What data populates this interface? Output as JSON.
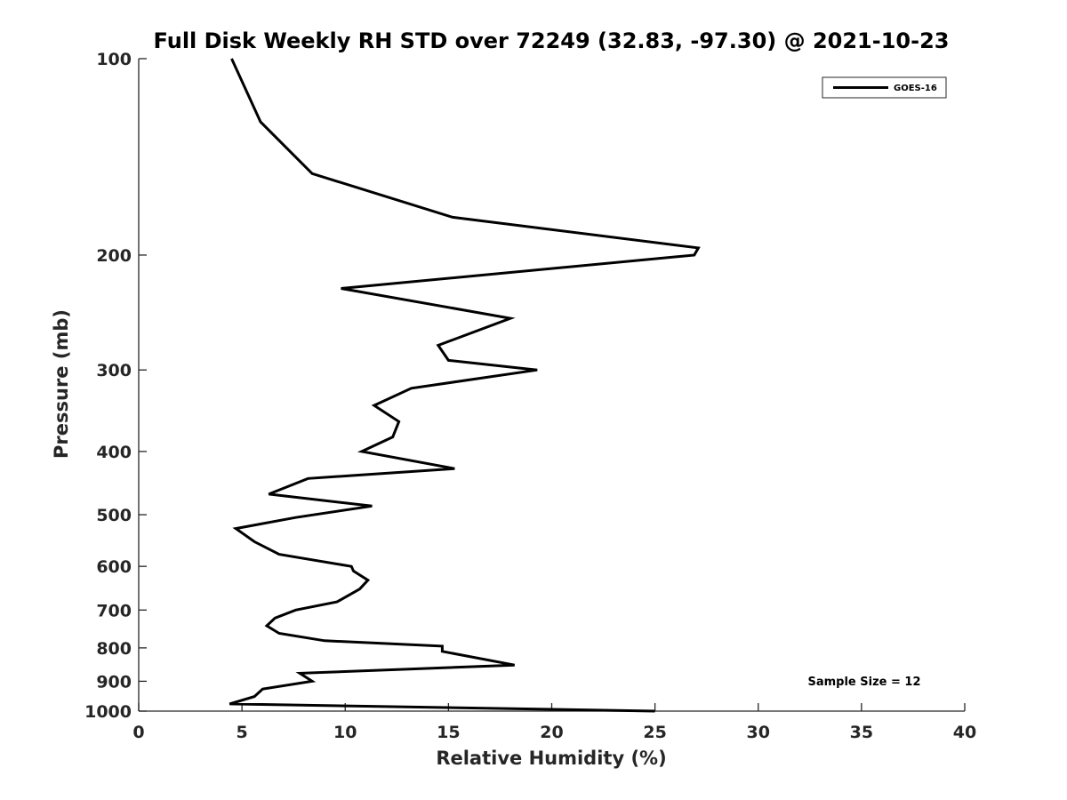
{
  "chart_data": {
    "type": "line",
    "title": "Full Disk Weekly RH STD over 72249 (32.83, -97.30) @ 2021-10-23",
    "xlabel": "Relative Humidity (%)",
    "ylabel": "Pressure (mb)",
    "xlim": [
      0,
      40
    ],
    "ylim": [
      100,
      1000
    ],
    "y_scale": "log",
    "y_reversed": true,
    "x_ticks": [
      0,
      5,
      10,
      15,
      20,
      25,
      30,
      35,
      40
    ],
    "y_ticks": [
      100,
      200,
      300,
      400,
      500,
      600,
      700,
      800,
      900,
      1000
    ],
    "grid": false,
    "legend_position": "top-right",
    "annotation": "Sample Size = 12",
    "colors": {
      "line": "#000000",
      "axis": "#262626"
    },
    "series": [
      {
        "name": "GOES-16",
        "x": [
          4.5,
          5.9,
          8.4,
          15.2,
          27.1,
          26.9,
          9.8,
          18.0,
          14.5,
          15.0,
          19.3,
          13.2,
          11.4,
          12.6,
          12.3,
          10.8,
          15.3,
          8.2,
          6.3,
          11.3,
          7.6,
          4.7,
          5.6,
          6.8,
          10.3,
          10.4,
          11.1,
          10.7,
          9.6,
          7.6,
          6.6,
          6.2,
          6.8,
          9.0,
          14.7,
          14.7,
          18.2,
          7.8,
          8.4,
          6.0,
          5.6,
          4.4,
          25.0
        ],
        "y": [
          100,
          125,
          150,
          175,
          195,
          200,
          225,
          250,
          275,
          290,
          300,
          320,
          340,
          360,
          380,
          400,
          425,
          440,
          465,
          485,
          505,
          525,
          550,
          575,
          600,
          610,
          630,
          650,
          680,
          700,
          720,
          740,
          760,
          780,
          795,
          810,
          850,
          875,
          900,
          925,
          950,
          975,
          1000
        ]
      }
    ]
  }
}
